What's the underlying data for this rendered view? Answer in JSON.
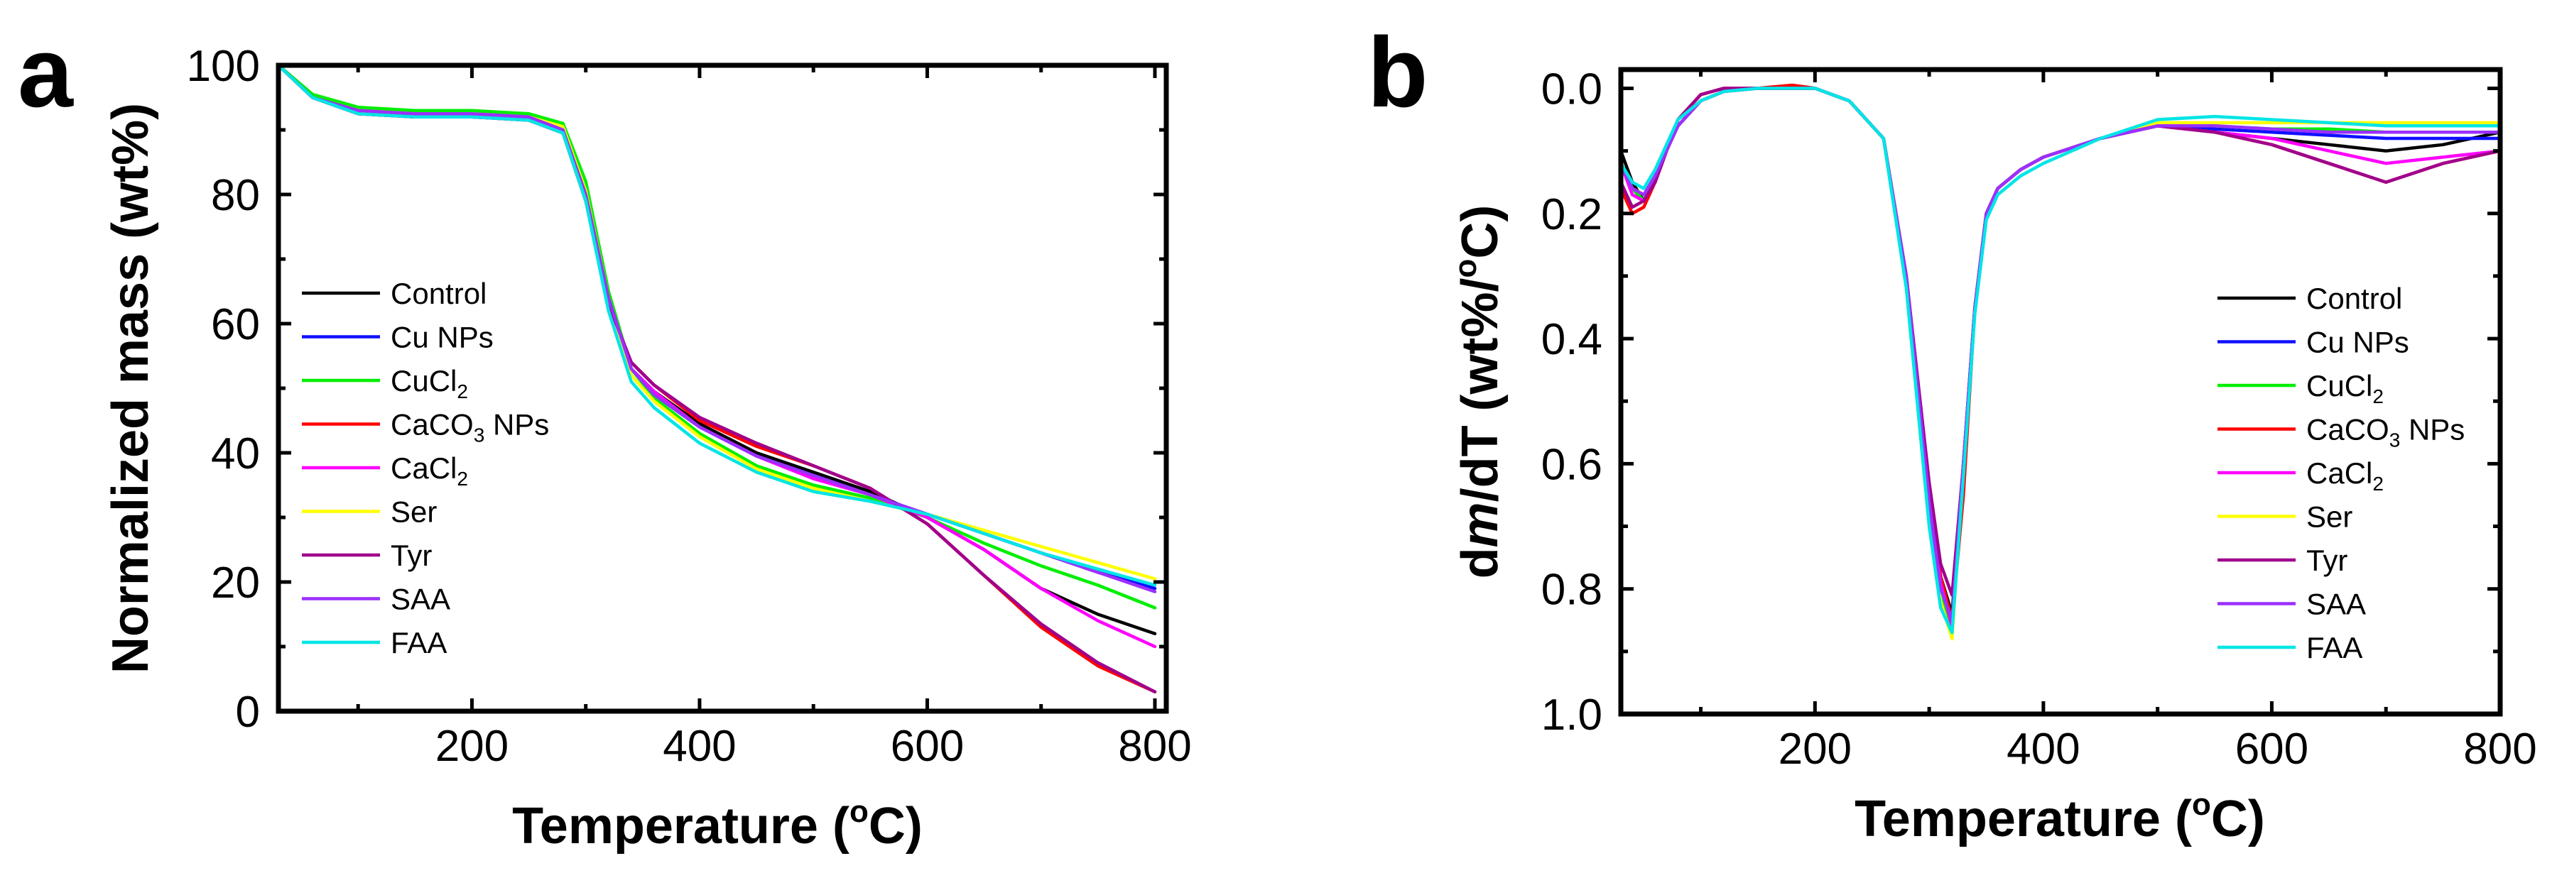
{
  "chart_data": [
    {
      "panel": "a",
      "type": "line",
      "xlabel": "Temperature (oC)",
      "xlabel_parts": [
        "Temperature (",
        "o",
        "C)"
      ],
      "ylabel": "Normalized mass (wt%)",
      "xlim": [
        30,
        810
      ],
      "ylim": [
        0,
        100
      ],
      "xticks": [
        200,
        400,
        600,
        800
      ],
      "yticks": [
        0,
        20,
        40,
        60,
        80,
        100
      ],
      "legend_position": "left",
      "series": [
        {
          "name": "Control",
          "label": "Control",
          "sub": "",
          "after": "",
          "color": "#000000",
          "x": [
            30,
            60,
            100,
            150,
            200,
            250,
            280,
            300,
            320,
            340,
            360,
            400,
            450,
            500,
            550,
            600,
            650,
            700,
            750,
            800
          ],
          "y": [
            100,
            95,
            93,
            92.5,
            92.5,
            92,
            90,
            80,
            64,
            53,
            49.5,
            44.5,
            40,
            37,
            34,
            30,
            25,
            19,
            15,
            12
          ]
        },
        {
          "name": "Cu NPs",
          "label": "Cu NPs",
          "sub": "",
          "after": "",
          "color": "#1010ff",
          "x": [
            30,
            60,
            100,
            150,
            200,
            250,
            280,
            300,
            320,
            340,
            360,
            400,
            450,
            500,
            550,
            600,
            650,
            700,
            750,
            800
          ],
          "y": [
            100,
            95,
            93,
            92.5,
            92.5,
            92.2,
            90.5,
            80,
            64,
            53,
            49,
            44,
            39.5,
            36.5,
            33.5,
            30.5,
            27.5,
            24.5,
            21.5,
            19
          ]
        },
        {
          "name": "CuCl2",
          "label": "CuCl",
          "sub": "2",
          "after": "",
          "color": "#00ee00",
          "x": [
            30,
            60,
            100,
            150,
            200,
            250,
            280,
            300,
            320,
            340,
            360,
            400,
            450,
            500,
            550,
            600,
            650,
            700,
            750,
            800
          ],
          "y": [
            100,
            95.5,
            93.5,
            93,
            93,
            92.5,
            91,
            82,
            65,
            53,
            48.5,
            43,
            38,
            35,
            33,
            30,
            26,
            22.5,
            19.5,
            16
          ]
        },
        {
          "name": "CaCO3 NPs",
          "label": "CaCO",
          "sub": "3",
          "after": " NPs",
          "color": "#ff0000",
          "x": [
            30,
            60,
            100,
            150,
            200,
            250,
            280,
            300,
            320,
            340,
            360,
            400,
            450,
            500,
            550,
            600,
            650,
            700,
            750,
            800
          ],
          "y": [
            100,
            95,
            92.5,
            92,
            92,
            91.5,
            89.5,
            79,
            63,
            54,
            50.5,
            45,
            41,
            38,
            34.5,
            29,
            21,
            13,
            7,
            3
          ]
        },
        {
          "name": "CaCl2",
          "label": "CaCl",
          "sub": "2",
          "after": "",
          "color": "#ff00ff",
          "x": [
            30,
            60,
            100,
            150,
            200,
            250,
            280,
            300,
            320,
            340,
            360,
            400,
            450,
            500,
            550,
            600,
            650,
            700,
            750,
            800
          ],
          "y": [
            100,
            95,
            92.5,
            92,
            92,
            91.8,
            90,
            79.5,
            63.5,
            53,
            49.5,
            44,
            39.5,
            36,
            33.5,
            30,
            25,
            19,
            14,
            10
          ]
        },
        {
          "name": "Ser",
          "label": "Ser",
          "sub": "",
          "after": "",
          "color": "#ffff00",
          "x": [
            30,
            60,
            100,
            150,
            200,
            250,
            280,
            300,
            320,
            340,
            360,
            400,
            450,
            500,
            550,
            600,
            650,
            700,
            750,
            800
          ],
          "y": [
            100,
            95,
            93,
            92.5,
            92.5,
            92,
            90.5,
            80.5,
            64,
            52,
            48,
            42.5,
            37.5,
            34.5,
            32.5,
            30.5,
            28,
            25.5,
            23,
            20.5
          ]
        },
        {
          "name": "Tyr",
          "label": "Tyr",
          "sub": "",
          "after": "",
          "color": "#a0008c",
          "x": [
            30,
            60,
            100,
            150,
            200,
            250,
            280,
            300,
            320,
            340,
            360,
            400,
            450,
            500,
            550,
            600,
            650,
            700,
            750,
            800
          ],
          "y": [
            100,
            95,
            92.5,
            92,
            92,
            91.5,
            89.5,
            79,
            63,
            54,
            50.5,
            45.5,
            41.5,
            38,
            34.5,
            29,
            21,
            13.5,
            7.5,
            3
          ]
        },
        {
          "name": "SAA",
          "label": "SAA",
          "sub": "",
          "after": "",
          "color": "#9b30ff",
          "x": [
            30,
            60,
            100,
            150,
            200,
            250,
            280,
            300,
            320,
            340,
            360,
            400,
            450,
            500,
            550,
            600,
            650,
            700,
            750,
            800
          ],
          "y": [
            100,
            95,
            93,
            92.5,
            92.5,
            92,
            90,
            80,
            64,
            53,
            49,
            44,
            39.5,
            36.5,
            33.5,
            30.5,
            27.5,
            24.5,
            21.5,
            18.5
          ]
        },
        {
          "name": "FAA",
          "label": "FAA",
          "sub": "",
          "after": "",
          "color": "#00e5e5",
          "x": [
            30,
            60,
            100,
            150,
            200,
            250,
            280,
            300,
            320,
            340,
            360,
            400,
            450,
            500,
            550,
            600,
            650,
            700,
            750,
            800
          ],
          "y": [
            100,
            95,
            92.5,
            92,
            92,
            91.5,
            89.5,
            79,
            62,
            51,
            47,
            41.5,
            37,
            34,
            32.5,
            30.5,
            27.5,
            24.5,
            22,
            19.5
          ]
        }
      ]
    },
    {
      "panel": "b",
      "type": "line",
      "xlabel": "Temperature (oC)",
      "xlabel_parts": [
        "Temperature (",
        "o",
        "C)"
      ],
      "ylabel": "dm/dT (wt%/oC)",
      "ylabel_parts": [
        "d",
        "m",
        "/dT (wt%/",
        "o",
        "C)"
      ],
      "xlim": [
        30,
        800
      ],
      "ylim": [
        1.0,
        -0.03
      ],
      "y_inverted": true,
      "xticks": [
        200,
        400,
        600,
        800
      ],
      "yticks": [
        0.0,
        0.2,
        0.4,
        0.6,
        0.8,
        1.0
      ],
      "ytick_labels": [
        "0.0",
        "0.2",
        "0.4",
        "0.6",
        "0.8",
        "1.0"
      ],
      "legend_position": "right",
      "series": [
        {
          "name": "Control",
          "color": "#000000",
          "x": [
            30,
            40,
            50,
            60,
            70,
            80,
            100,
            120,
            150,
            200,
            230,
            260,
            280,
            300,
            310,
            320,
            330,
            340,
            350,
            360,
            380,
            400,
            450,
            500,
            550,
            600,
            650,
            700,
            750,
            800
          ],
          "y": [
            0.1,
            0.15,
            0.18,
            0.15,
            0.1,
            0.06,
            0.02,
            0.005,
            0.0,
            0.0,
            0.02,
            0.08,
            0.3,
            0.65,
            0.78,
            0.84,
            0.6,
            0.35,
            0.2,
            0.16,
            0.13,
            0.11,
            0.08,
            0.06,
            0.07,
            0.08,
            0.09,
            0.1,
            0.09,
            0.07
          ]
        },
        {
          "name": "Cu NPs",
          "color": "#1010ff",
          "x": [
            30,
            40,
            50,
            60,
            70,
            80,
            100,
            120,
            150,
            200,
            230,
            260,
            280,
            300,
            310,
            320,
            330,
            340,
            350,
            360,
            380,
            400,
            450,
            500,
            550,
            600,
            650,
            700,
            750,
            800
          ],
          "y": [
            0.12,
            0.16,
            0.18,
            0.14,
            0.1,
            0.06,
            0.02,
            0.005,
            0.0,
            0.0,
            0.02,
            0.08,
            0.3,
            0.66,
            0.8,
            0.86,
            0.6,
            0.35,
            0.2,
            0.16,
            0.13,
            0.11,
            0.08,
            0.06,
            0.065,
            0.07,
            0.075,
            0.08,
            0.08,
            0.08
          ]
        },
        {
          "name": "CuCl2",
          "color": "#00ee00",
          "x": [
            30,
            40,
            50,
            60,
            70,
            80,
            100,
            120,
            150,
            200,
            230,
            260,
            280,
            300,
            310,
            320,
            330,
            340,
            350,
            360,
            380,
            400,
            450,
            500,
            550,
            600,
            650,
            700,
            750,
            800
          ],
          "y": [
            0.12,
            0.16,
            0.18,
            0.14,
            0.1,
            0.06,
            0.02,
            0.005,
            0.0,
            0.0,
            0.02,
            0.08,
            0.3,
            0.67,
            0.8,
            0.87,
            0.6,
            0.35,
            0.2,
            0.16,
            0.13,
            0.11,
            0.08,
            0.06,
            0.06,
            0.065,
            0.065,
            0.07,
            0.07,
            0.07
          ]
        },
        {
          "name": "CaCO3 NPs",
          "color": "#ff0000",
          "x": [
            30,
            40,
            50,
            60,
            70,
            80,
            100,
            120,
            150,
            180,
            200,
            230,
            260,
            280,
            300,
            310,
            320,
            330,
            340,
            350,
            360,
            380,
            400,
            450,
            500,
            550,
            600,
            650,
            700,
            750,
            800
          ],
          "y": [
            0.16,
            0.2,
            0.19,
            0.15,
            0.1,
            0.05,
            0.01,
            0.0,
            0.0,
            -0.005,
            0.0,
            0.02,
            0.08,
            0.3,
            0.64,
            0.78,
            0.85,
            0.65,
            0.35,
            0.2,
            0.16,
            0.13,
            0.11,
            0.08,
            0.06,
            0.07,
            0.09,
            0.12,
            0.15,
            0.12,
            0.1
          ]
        },
        {
          "name": "CaCl2",
          "color": "#ff00ff",
          "x": [
            30,
            40,
            50,
            60,
            70,
            80,
            100,
            120,
            150,
            200,
            230,
            260,
            280,
            300,
            310,
            320,
            330,
            340,
            350,
            360,
            380,
            400,
            450,
            500,
            550,
            600,
            650,
            700,
            750,
            800
          ],
          "y": [
            0.12,
            0.17,
            0.18,
            0.15,
            0.1,
            0.06,
            0.02,
            0.005,
            0.0,
            0.0,
            0.02,
            0.08,
            0.3,
            0.66,
            0.79,
            0.86,
            0.6,
            0.35,
            0.2,
            0.16,
            0.13,
            0.11,
            0.08,
            0.06,
            0.07,
            0.08,
            0.1,
            0.12,
            0.11,
            0.1
          ]
        },
        {
          "name": "Ser",
          "color": "#ffff00",
          "x": [
            30,
            40,
            50,
            60,
            70,
            80,
            100,
            120,
            150,
            200,
            230,
            260,
            280,
            300,
            310,
            320,
            330,
            340,
            350,
            360,
            380,
            400,
            450,
            500,
            550,
            600,
            650,
            700,
            750,
            800
          ],
          "y": [
            0.12,
            0.16,
            0.17,
            0.14,
            0.1,
            0.06,
            0.02,
            0.005,
            0.0,
            0.0,
            0.02,
            0.08,
            0.3,
            0.68,
            0.82,
            0.88,
            0.6,
            0.35,
            0.2,
            0.16,
            0.13,
            0.11,
            0.08,
            0.055,
            0.055,
            0.055,
            0.055,
            0.055,
            0.055,
            0.055
          ]
        },
        {
          "name": "Tyr",
          "color": "#a0008c",
          "x": [
            30,
            40,
            50,
            60,
            70,
            80,
            100,
            120,
            150,
            200,
            230,
            260,
            280,
            300,
            310,
            320,
            330,
            340,
            350,
            360,
            380,
            400,
            450,
            500,
            550,
            600,
            650,
            700,
            750,
            800
          ],
          "y": [
            0.15,
            0.19,
            0.18,
            0.15,
            0.1,
            0.05,
            0.01,
            0.0,
            0.0,
            0.0,
            0.02,
            0.08,
            0.3,
            0.63,
            0.76,
            0.81,
            0.6,
            0.35,
            0.2,
            0.16,
            0.13,
            0.11,
            0.08,
            0.06,
            0.07,
            0.09,
            0.12,
            0.15,
            0.12,
            0.1
          ]
        },
        {
          "name": "SAA",
          "color": "#9b30ff",
          "x": [
            30,
            40,
            50,
            60,
            70,
            80,
            100,
            120,
            150,
            200,
            230,
            260,
            280,
            300,
            310,
            320,
            330,
            340,
            350,
            360,
            380,
            400,
            450,
            500,
            550,
            600,
            650,
            700,
            750,
            800
          ],
          "y": [
            0.12,
            0.16,
            0.17,
            0.14,
            0.1,
            0.06,
            0.02,
            0.005,
            0.0,
            0.0,
            0.02,
            0.08,
            0.3,
            0.66,
            0.8,
            0.85,
            0.6,
            0.35,
            0.2,
            0.16,
            0.13,
            0.11,
            0.08,
            0.06,
            0.06,
            0.065,
            0.07,
            0.07,
            0.07,
            0.07
          ]
        },
        {
          "name": "FAA",
          "color": "#00e5e5",
          "x": [
            30,
            40,
            50,
            60,
            70,
            80,
            100,
            120,
            150,
            200,
            230,
            260,
            280,
            300,
            310,
            320,
            330,
            340,
            350,
            360,
            380,
            400,
            450,
            500,
            550,
            600,
            650,
            700,
            750,
            800
          ],
          "y": [
            0.12,
            0.15,
            0.16,
            0.13,
            0.09,
            0.05,
            0.02,
            0.005,
            0.0,
            0.0,
            0.02,
            0.08,
            0.32,
            0.7,
            0.83,
            0.87,
            0.62,
            0.36,
            0.21,
            0.17,
            0.14,
            0.12,
            0.08,
            0.05,
            0.045,
            0.05,
            0.055,
            0.06,
            0.06,
            0.06
          ]
        }
      ]
    }
  ]
}
